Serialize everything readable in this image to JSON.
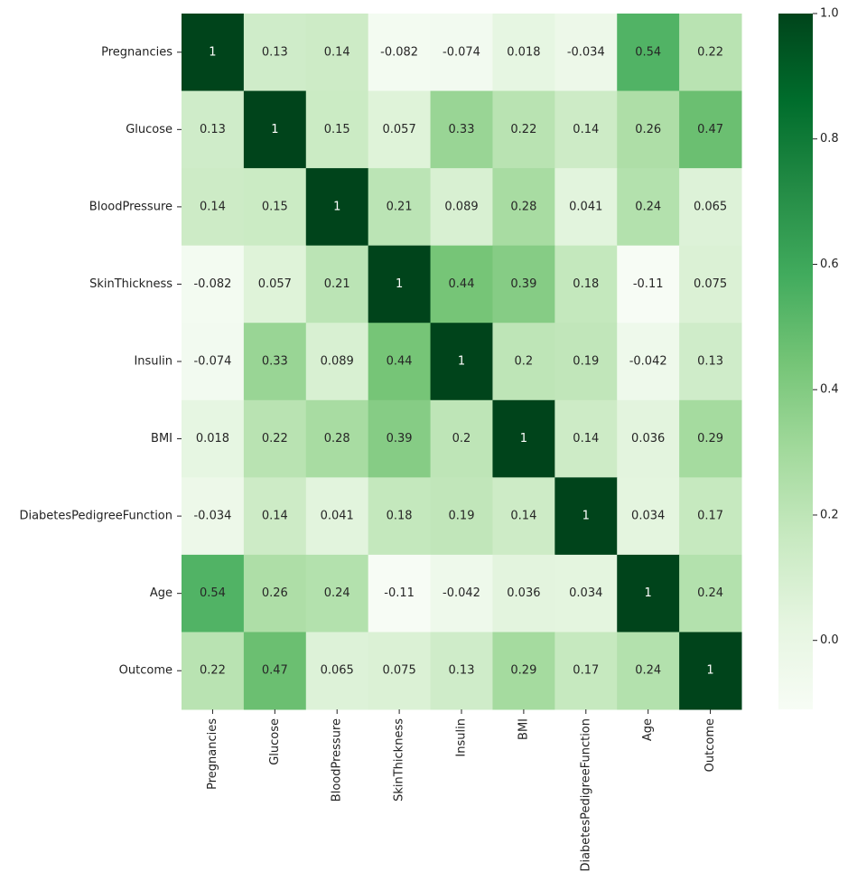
{
  "chart_data": {
    "type": "heatmap",
    "rows": [
      "Pregnancies",
      "Glucose",
      "BloodPressure",
      "SkinThickness",
      "Insulin",
      "BMI",
      "DiabetesPedigreeFunction",
      "Age",
      "Outcome"
    ],
    "columns": [
      "Pregnancies",
      "Glucose",
      "BloodPressure",
      "SkinThickness",
      "Insulin",
      "BMI",
      "DiabetesPedigreeFunction",
      "Age",
      "Outcome"
    ],
    "values": [
      [
        1,
        0.13,
        0.14,
        -0.082,
        -0.074,
        0.018,
        -0.034,
        0.54,
        0.22
      ],
      [
        0.13,
        1,
        0.15,
        0.057,
        0.33,
        0.22,
        0.14,
        0.26,
        0.47
      ],
      [
        0.14,
        0.15,
        1,
        0.21,
        0.089,
        0.28,
        0.041,
        0.24,
        0.065
      ],
      [
        -0.082,
        0.057,
        0.21,
        1,
        0.44,
        0.39,
        0.18,
        -0.11,
        0.075
      ],
      [
        -0.074,
        0.33,
        0.089,
        0.44,
        1,
        0.2,
        0.19,
        -0.042,
        0.13
      ],
      [
        0.018,
        0.22,
        0.28,
        0.39,
        0.2,
        1,
        0.14,
        0.036,
        0.29
      ],
      [
        -0.034,
        0.14,
        0.041,
        0.18,
        0.19,
        0.14,
        1,
        0.034,
        0.17
      ],
      [
        0.54,
        0.26,
        0.24,
        -0.11,
        -0.042,
        0.036,
        0.034,
        1,
        0.24
      ],
      [
        0.22,
        0.47,
        0.065,
        0.075,
        0.13,
        0.29,
        0.17,
        0.24,
        1
      ]
    ],
    "colormap": [
      "#f7fcf5",
      "#e5f5e0",
      "#c7e9c0",
      "#a1d99b",
      "#74c476",
      "#41ab5d",
      "#238b45",
      "#006d2c",
      "#00441b"
    ],
    "colorbar_lim": [
      -0.11,
      1
    ],
    "colorbar_ticks": [
      {
        "value": 0,
        "label": "0.0"
      },
      0.2,
      0.4,
      0.6,
      0.8,
      {
        "value": 1,
        "label": "1.0"
      }
    ]
  }
}
